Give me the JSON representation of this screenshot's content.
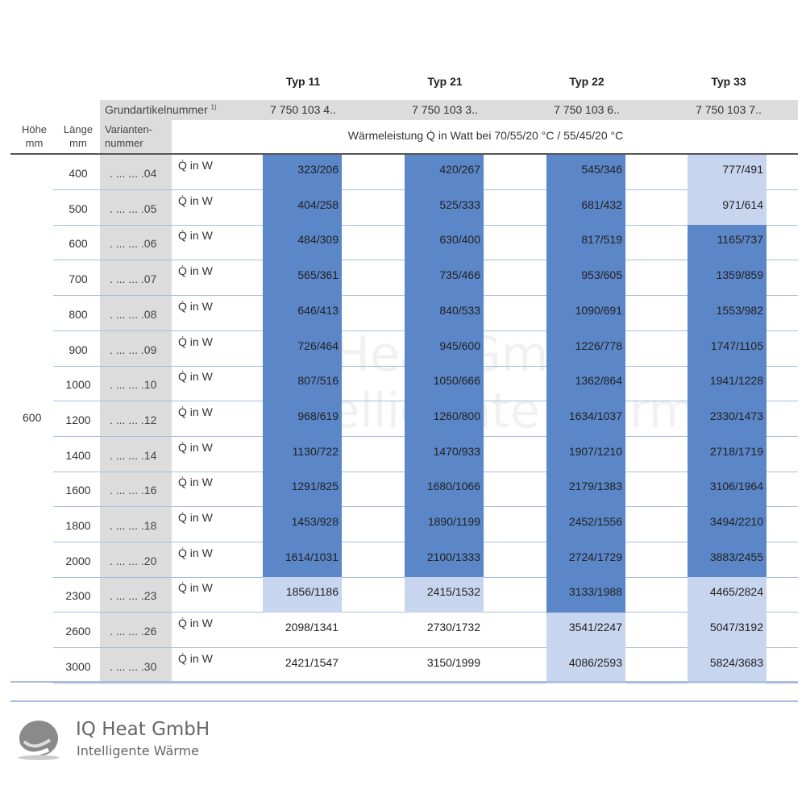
{
  "columns": [
    {
      "type": "Typ 11",
      "article": "7 750 103 4.."
    },
    {
      "type": "Typ 21",
      "article": "7 750 103 3.."
    },
    {
      "type": "Typ 22",
      "article": "7 750 103 6.."
    },
    {
      "type": "Typ 33",
      "article": "7 750 103 7.."
    }
  ],
  "header": {
    "grund": "Grundartikelnummer",
    "footnote": "1)",
    "hoehe": "Höhe",
    "hoehe_unit": "mm",
    "laenge": "Länge",
    "laenge_unit": "mm",
    "variant1": "Varianten-",
    "variant2": "nummer",
    "waerme": "Wärmeleistung Q̇ in Watt bei 70/55/20 °C / 55/45/20 °C"
  },
  "hoehe_value": "600",
  "unit_label": "Q̇ in W",
  "colors": {
    "dark": "#5b86c8",
    "light": "#c8d5ee"
  },
  "rows": [
    {
      "laenge": "400",
      "variant": ". ... ... .04",
      "values": [
        "323/206",
        "420/267",
        "545/346",
        "777/491"
      ],
      "shade": [
        "dark",
        "dark",
        "dark",
        "light"
      ]
    },
    {
      "laenge": "500",
      "variant": ". ... ... .05",
      "values": [
        "404/258",
        "525/333",
        "681/432",
        "971/614"
      ],
      "shade": [
        "dark",
        "dark",
        "dark",
        "light"
      ]
    },
    {
      "laenge": "600",
      "variant": ". ... ... .06",
      "values": [
        "484/309",
        "630/400",
        "817/519",
        "1165/737"
      ],
      "shade": [
        "dark",
        "dark",
        "dark",
        "dark"
      ]
    },
    {
      "laenge": "700",
      "variant": ". ... ... .07",
      "values": [
        "565/361",
        "735/466",
        "953/605",
        "1359/859"
      ],
      "shade": [
        "dark",
        "dark",
        "dark",
        "dark"
      ]
    },
    {
      "laenge": "800",
      "variant": ". ... ... .08",
      "values": [
        "646/413",
        "840/533",
        "1090/691",
        "1553/982"
      ],
      "shade": [
        "dark",
        "dark",
        "dark",
        "dark"
      ]
    },
    {
      "laenge": "900",
      "variant": ". ... ... .09",
      "values": [
        "726/464",
        "945/600",
        "1226/778",
        "1747/1105"
      ],
      "shade": [
        "dark",
        "dark",
        "dark",
        "dark"
      ]
    },
    {
      "laenge": "1000",
      "variant": ". ... ... .10",
      "values": [
        "807/516",
        "1050/666",
        "1362/864",
        "1941/1228"
      ],
      "shade": [
        "dark",
        "dark",
        "dark",
        "dark"
      ]
    },
    {
      "laenge": "1200",
      "variant": ". ... ... .12",
      "values": [
        "968/619",
        "1260/800",
        "1634/1037",
        "2330/1473"
      ],
      "shade": [
        "dark",
        "dark",
        "dark",
        "dark"
      ]
    },
    {
      "laenge": "1400",
      "variant": ". ... ... .14",
      "values": [
        "1130/722",
        "1470/933",
        "1907/1210",
        "2718/1719"
      ],
      "shade": [
        "dark",
        "dark",
        "dark",
        "dark"
      ]
    },
    {
      "laenge": "1600",
      "variant": ". ... ... .16",
      "values": [
        "1291/825",
        "1680/1066",
        "2179/1383",
        "3106/1964"
      ],
      "shade": [
        "dark",
        "dark",
        "dark",
        "dark"
      ]
    },
    {
      "laenge": "1800",
      "variant": ". ... ... .18",
      "values": [
        "1453/928",
        "1890/1199",
        "2452/1556",
        "3494/2210"
      ],
      "shade": [
        "dark",
        "dark",
        "dark",
        "dark"
      ]
    },
    {
      "laenge": "2000",
      "variant": ". ... ... .20",
      "values": [
        "1614/1031",
        "2100/1333",
        "2724/1729",
        "3883/2455"
      ],
      "shade": [
        "dark",
        "dark",
        "dark",
        "dark"
      ]
    },
    {
      "laenge": "2300",
      "variant": ". ... ... .23",
      "values": [
        "1856/1186",
        "2415/1532",
        "3133/1988",
        "4465/2824"
      ],
      "shade": [
        "light",
        "light",
        "dark",
        "light"
      ]
    },
    {
      "laenge": "2600",
      "variant": ". ... ... .26",
      "values": [
        "2098/1341",
        "2730/1732",
        "3541/2247",
        "5047/3192"
      ],
      "shade": [
        "none",
        "none",
        "light",
        "light"
      ]
    },
    {
      "laenge": "3000",
      "variant": ". ... ... .30",
      "values": [
        "2421/1547",
        "3150/1999",
        "4086/2593",
        "5824/3683"
      ],
      "shade": [
        "none",
        "none",
        "light",
        "light"
      ]
    }
  ],
  "logo": {
    "name": "IQ Heat GmbH",
    "tagline": "Intelligente Wärme"
  }
}
